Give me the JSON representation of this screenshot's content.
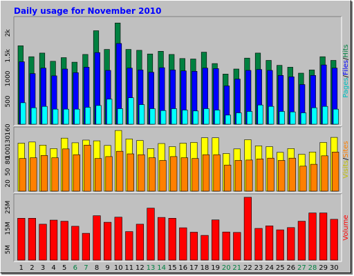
{
  "chart_data": {
    "title": "Daily usage for November 2010",
    "type": "bar",
    "days": [
      {
        "label": "1",
        "weekend": false
      },
      {
        "label": "2",
        "weekend": false
      },
      {
        "label": "3",
        "weekend": false
      },
      {
        "label": "4",
        "weekend": false
      },
      {
        "label": "5",
        "weekend": false
      },
      {
        "label": "6",
        "weekend": true
      },
      {
        "label": "7",
        "weekend": true
      },
      {
        "label": "8",
        "weekend": false
      },
      {
        "label": "9",
        "weekend": false
      },
      {
        "label": "10",
        "weekend": false
      },
      {
        "label": "11",
        "weekend": false
      },
      {
        "label": "12",
        "weekend": false
      },
      {
        "label": "13",
        "weekend": true
      },
      {
        "label": "14",
        "weekend": true
      },
      {
        "label": "15",
        "weekend": false
      },
      {
        "label": "16",
        "weekend": false
      },
      {
        "label": "17",
        "weekend": false
      },
      {
        "label": "18",
        "weekend": false
      },
      {
        "label": "19",
        "weekend": false
      },
      {
        "label": "20",
        "weekend": true
      },
      {
        "label": "21",
        "weekend": true
      },
      {
        "label": "22",
        "weekend": false
      },
      {
        "label": "23",
        "weekend": false
      },
      {
        "label": "24",
        "weekend": false
      },
      {
        "label": "25",
        "weekend": false
      },
      {
        "label": "26",
        "weekend": false
      },
      {
        "label": "27",
        "weekend": true
      },
      {
        "label": "28",
        "weekend": true
      },
      {
        "label": "29",
        "weekend": false
      },
      {
        "label": "30",
        "weekend": false
      }
    ],
    "panels": [
      {
        "ylim": [
          0,
          2300
        ],
        "ticks": [
          "500",
          "1000",
          "1.5k",
          "2k"
        ],
        "tick_values": [
          500,
          1000,
          1500,
          2000
        ],
        "series": [
          {
            "name": "Hits",
            "color": "#008040",
            "values": [
              1720,
              1480,
              1560,
              1380,
              1460,
              1360,
              1530,
              2050,
              1640,
              2220,
              1640,
              1620,
              1540,
              1600,
              1530,
              1440,
              1430,
              1580,
              1330,
              1100,
              1210,
              1450,
              1560,
              1400,
              1290,
              1250,
              1120,
              1190,
              1480,
              1400
            ]
          },
          {
            "name": "Files",
            "color": "#0000ff",
            "values": [
              1370,
              1110,
              1230,
              1060,
              1210,
              1130,
              1250,
              1570,
              1180,
              1770,
              1230,
              1190,
              1140,
              1240,
              1190,
              1170,
              1160,
              1230,
              1220,
              840,
              990,
              1180,
              1200,
              1180,
              1070,
              1040,
              870,
              1070,
              1300,
              1230
            ]
          },
          {
            "name": "Pages",
            "color": "#00ffff",
            "values": [
              470,
              360,
              390,
              330,
              330,
              330,
              370,
              410,
              550,
              340,
              580,
              430,
              340,
              300,
              340,
              310,
              290,
              340,
              310,
              200,
              250,
              280,
              420,
              390,
              280,
              270,
              250,
              360,
              390,
              330
            ]
          }
        ],
        "legend": [
          "Pages",
          "/",
          "Files",
          "/",
          "Hits"
        ],
        "legend_colors": [
          "#00c0c0",
          "#000000",
          "#0000ff",
          "#000000",
          "#008040"
        ]
      },
      {
        "ylim": [
          0,
          160
        ],
        "ticks": [
          "20",
          "50",
          "80",
          "100",
          "130",
          "160"
        ],
        "tick_values": [
          20,
          50,
          80,
          100,
          130,
          160
        ],
        "series": [
          {
            "name": "Visits",
            "color": "#ffff00",
            "values": [
              125,
              128,
              120,
              111,
              138,
              126,
              133,
              131,
              119,
              158,
              136,
              132,
              111,
              124,
              116,
              125,
              127,
              139,
              139,
              98,
              110,
              134,
              118,
              116,
              101,
              111,
              96,
              102,
              127,
              140
            ]
          },
          {
            "name": "Sites",
            "color": "#ff8000",
            "values": [
              85,
              87,
              93,
              87,
              110,
              95,
              120,
              85,
              90,
              104,
              97,
              95,
              87,
              80,
              90,
              87,
              85,
              95,
              95,
              68,
              80,
              81,
              84,
              86,
              80,
              86,
              65,
              70,
              92,
              102
            ]
          }
        ],
        "legend": [
          "Visits",
          "/",
          "Sites"
        ],
        "legend_colors": [
          "#c0c000",
          "#000000",
          "#ff8000"
        ]
      },
      {
        "ylim": [
          0,
          30000000
        ],
        "ticks": [
          "5M",
          "15M",
          "25M"
        ],
        "tick_values": [
          5000000,
          15000000,
          25000000
        ],
        "series": [
          {
            "name": "Volume",
            "color": "#ff0000",
            "values": [
              19800000,
              19800000,
              17000000,
              18900000,
              18400000,
              16000000,
              12700000,
              21000000,
              17900000,
              20300000,
              13500000,
              17000000,
              24600000,
              20200000,
              19800000,
              15300000,
              13200000,
              11700000,
              19000000,
              13300000,
              13100000,
              29700000,
              15000000,
              16200000,
              14300000,
              15400000,
              18400000,
              22300000,
              22300000,
              19300000
            ]
          }
        ],
        "legend": [
          "Volume"
        ],
        "legend_colors": [
          "#ff0000"
        ]
      }
    ],
    "axis_color_weekday": "#000000",
    "axis_color_weekend": "#008040",
    "grid": false
  }
}
